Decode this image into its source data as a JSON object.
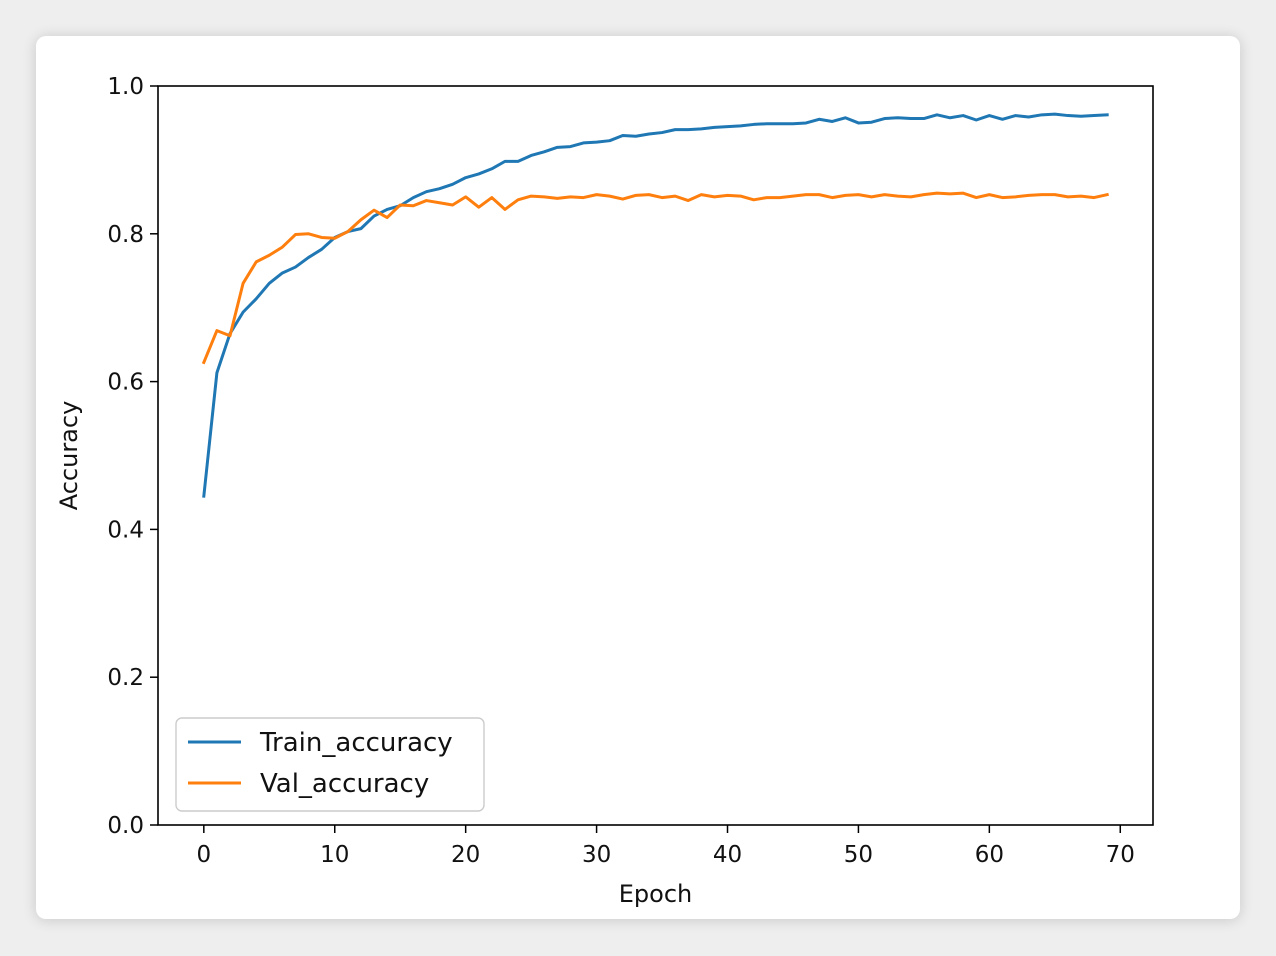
{
  "chart_data": {
    "type": "line",
    "title": "",
    "xlabel": "Epoch",
    "ylabel": "Accuracy",
    "xlim": [
      -3.5,
      72.5
    ],
    "ylim": [
      0.0,
      1.0
    ],
    "xticks": [
      0,
      10,
      20,
      30,
      40,
      50,
      60,
      70
    ],
    "yticks": [
      0.0,
      0.2,
      0.4,
      0.6,
      0.8,
      1.0
    ],
    "xtick_labels": [
      "0",
      "10",
      "20",
      "30",
      "40",
      "50",
      "60",
      "70"
    ],
    "ytick_labels": [
      "0.0",
      "0.2",
      "0.4",
      "0.6",
      "0.8",
      "1.0"
    ],
    "grid": false,
    "legend_position": "lower-left",
    "x": [
      0,
      1,
      2,
      3,
      4,
      5,
      6,
      7,
      8,
      9,
      10,
      11,
      12,
      13,
      14,
      15,
      16,
      17,
      18,
      19,
      20,
      21,
      22,
      23,
      24,
      25,
      26,
      27,
      28,
      29,
      30,
      31,
      32,
      33,
      34,
      35,
      36,
      37,
      38,
      39,
      40,
      41,
      42,
      43,
      44,
      45,
      46,
      47,
      48,
      49,
      50,
      51,
      52,
      53,
      54,
      55,
      56,
      57,
      58,
      59,
      60,
      61,
      62,
      63,
      64,
      65,
      66,
      67,
      68,
      69
    ],
    "series": [
      {
        "name": "Train_accuracy",
        "color": "#1f77b4",
        "values": [
          0.445,
          0.612,
          0.665,
          0.694,
          0.712,
          0.733,
          0.747,
          0.755,
          0.768,
          0.779,
          0.795,
          0.803,
          0.807,
          0.824,
          0.833,
          0.838,
          0.849,
          0.857,
          0.861,
          0.867,
          0.876,
          0.881,
          0.888,
          0.898,
          0.898,
          0.906,
          0.911,
          0.917,
          0.918,
          0.923,
          0.924,
          0.926,
          0.933,
          0.932,
          0.935,
          0.937,
          0.941,
          0.941,
          0.942,
          0.944,
          0.945,
          0.946,
          0.948,
          0.949,
          0.949,
          0.949,
          0.95,
          0.955,
          0.952,
          0.957,
          0.95,
          0.951,
          0.956,
          0.957,
          0.956,
          0.956,
          0.961,
          0.957,
          0.96,
          0.954,
          0.96,
          0.955,
          0.96,
          0.958,
          0.961,
          0.962,
          0.96,
          0.959,
          0.96,
          0.961
        ]
      },
      {
        "name": "Val_accuracy",
        "color": "#ff7f0e",
        "values": [
          0.626,
          0.669,
          0.662,
          0.733,
          0.762,
          0.771,
          0.782,
          0.799,
          0.8,
          0.795,
          0.794,
          0.803,
          0.819,
          0.832,
          0.822,
          0.839,
          0.838,
          0.845,
          0.842,
          0.839,
          0.85,
          0.836,
          0.849,
          0.833,
          0.846,
          0.851,
          0.85,
          0.848,
          0.85,
          0.849,
          0.853,
          0.851,
          0.847,
          0.852,
          0.853,
          0.849,
          0.851,
          0.845,
          0.853,
          0.85,
          0.852,
          0.851,
          0.846,
          0.849,
          0.849,
          0.851,
          0.853,
          0.853,
          0.849,
          0.852,
          0.853,
          0.85,
          0.853,
          0.851,
          0.85,
          0.853,
          0.855,
          0.854,
          0.855,
          0.849,
          0.853,
          0.849,
          0.85,
          0.852,
          0.853,
          0.853,
          0.85,
          0.851,
          0.849,
          0.853
        ]
      }
    ]
  }
}
